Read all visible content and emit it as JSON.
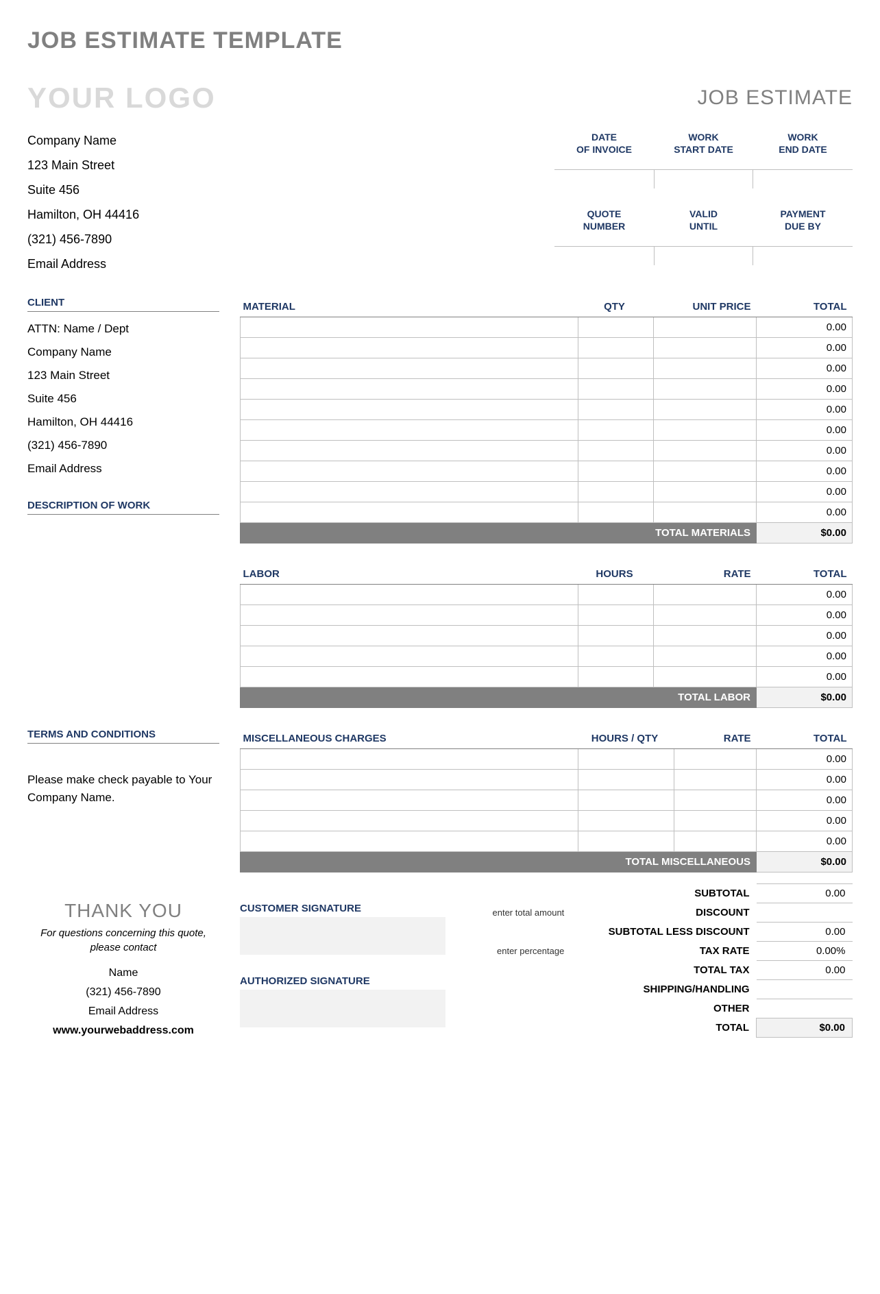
{
  "page_title": "JOB ESTIMATE TEMPLATE",
  "logo_text": "YOUR LOGO",
  "doc_type": "JOB ESTIMATE",
  "company": {
    "name": "Company Name",
    "street": "123 Main Street",
    "suite": "Suite 456",
    "city": "Hamilton, OH  44416",
    "phone": "(321) 456-7890",
    "email": "Email Address"
  },
  "date_headers": {
    "date_of_invoice_1": "DATE",
    "date_of_invoice_2": "OF INVOICE",
    "work_start_1": "WORK",
    "work_start_2": "START DATE",
    "work_end_1": "WORK",
    "work_end_2": "END DATE",
    "quote_1": "QUOTE",
    "quote_2": "NUMBER",
    "valid_1": "VALID",
    "valid_2": "UNTIL",
    "payment_1": "PAYMENT",
    "payment_2": "DUE BY"
  },
  "labels": {
    "client": "CLIENT",
    "description_of_work": "DESCRIPTION OF WORK",
    "material": "MATERIAL",
    "qty": "QTY",
    "unit_price": "UNIT PRICE",
    "total": "TOTAL",
    "total_materials": "TOTAL MATERIALS",
    "labor": "LABOR",
    "hours": "HOURS",
    "rate": "RATE",
    "total_labor": "TOTAL LABOR",
    "terms": "TERMS AND CONDITIONS",
    "misc": "MISCELLANEOUS CHARGES",
    "hours_qty": "HOURS / QTY",
    "total_misc": "TOTAL MISCELLANEOUS",
    "customer_signature": "CUSTOMER SIGNATURE",
    "authorized_signature": "AUTHORIZED SIGNATURE",
    "subtotal": "SUBTOTAL",
    "discount": "DISCOUNT",
    "subtotal_less_discount": "SUBTOTAL LESS DISCOUNT",
    "tax_rate": "TAX RATE",
    "total_tax": "TOTAL TAX",
    "shipping": "SHIPPING/HANDLING",
    "other": "OTHER",
    "grand_total": "TOTAL",
    "enter_total_amount": "enter total amount",
    "enter_percentage": "enter percentage"
  },
  "client": {
    "attn": "ATTN: Name / Dept",
    "company": "Company Name",
    "street": "123 Main Street",
    "suite": "Suite 456",
    "city": "Hamilton, OH  44416",
    "phone": "(321) 456-7890",
    "email": "Email Address"
  },
  "materials": {
    "rows": [
      {
        "total": "0.00"
      },
      {
        "total": "0.00"
      },
      {
        "total": "0.00"
      },
      {
        "total": "0.00"
      },
      {
        "total": "0.00"
      },
      {
        "total": "0.00"
      },
      {
        "total": "0.00"
      },
      {
        "total": "0.00"
      },
      {
        "total": "0.00"
      },
      {
        "total": "0.00"
      }
    ],
    "subtotal": "$0.00"
  },
  "labor": {
    "rows": [
      {
        "total": "0.00"
      },
      {
        "total": "0.00"
      },
      {
        "total": "0.00"
      },
      {
        "total": "0.00"
      },
      {
        "total": "0.00"
      }
    ],
    "subtotal": "$0.00"
  },
  "misc": {
    "rows": [
      {
        "total": "0.00"
      },
      {
        "total": "0.00"
      },
      {
        "total": "0.00"
      },
      {
        "total": "0.00"
      },
      {
        "total": "0.00"
      }
    ],
    "subtotal": "$0.00"
  },
  "terms_text": "Please make check payable to Your Company Name.",
  "thank_you": "THANK YOU",
  "contact_note": "For questions concerning this quote, please contact",
  "contact": {
    "name": "Name",
    "phone": "(321) 456-7890",
    "email": "Email Address",
    "web": "www.yourwebaddress.com"
  },
  "summary": {
    "subtotal": "0.00",
    "discount": "",
    "subtotal_less_discount": "0.00",
    "tax_rate": "0.00%",
    "total_tax": "0.00",
    "shipping": "",
    "other": "",
    "total": "$0.00"
  }
}
